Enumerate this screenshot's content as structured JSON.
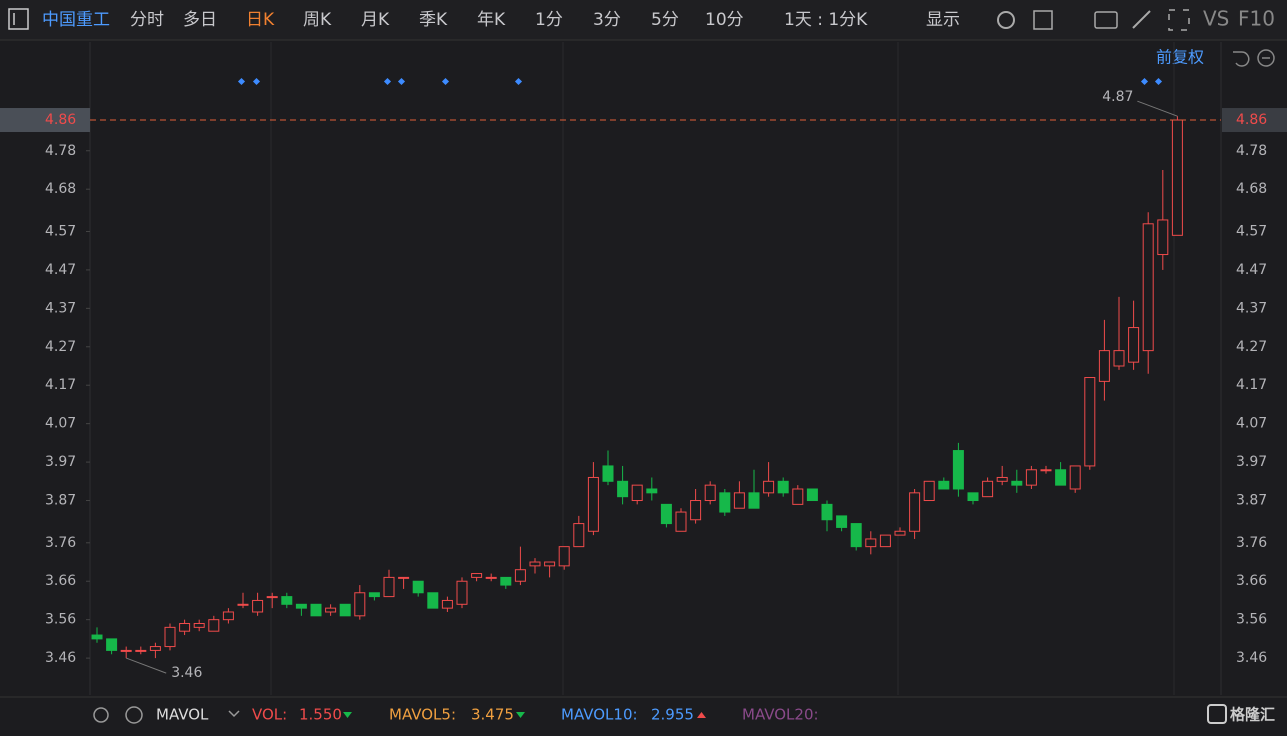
{
  "toolbar": {
    "stock": "中国重工",
    "tabs": [
      "分时",
      "多日",
      "日K",
      "周K",
      "月K",
      "季K",
      "年K",
      "1分",
      "3分",
      "5分",
      "10分"
    ],
    "active_tab": "日K",
    "period": "1天 : 1分K",
    "display": "显示",
    "vs": "VS",
    "f10": "F10",
    "adjust": "前复权"
  },
  "chart_data": {
    "type": "candlestick",
    "open": [
      3.52,
      3.51,
      3.48,
      3.48,
      3.48,
      3.49,
      3.53,
      3.54,
      3.53,
      3.56,
      3.6,
      3.58,
      3.62,
      3.62,
      3.6,
      3.6,
      3.58,
      3.6,
      3.57,
      3.63,
      3.62,
      3.67,
      3.66,
      3.63,
      3.59,
      3.6,
      3.67,
      3.67,
      3.67,
      3.66,
      3.7,
      3.7,
      3.7,
      3.75,
      3.79,
      3.96,
      3.92,
      3.87,
      3.9,
      3.86,
      3.79,
      3.82,
      3.87,
      3.89,
      3.85,
      3.89,
      3.89,
      3.92,
      3.86,
      3.9,
      3.86,
      3.83,
      3.81,
      3.75,
      3.75,
      3.78,
      3.79,
      3.87,
      3.92,
      4.0,
      3.89,
      3.88,
      3.92,
      3.92,
      3.91,
      3.95,
      3.95,
      3.9,
      3.96,
      4.18,
      4.22,
      4.23,
      4.26,
      4.51,
      4.56
    ],
    "high": [
      3.54,
      3.51,
      3.49,
      3.49,
      3.5,
      3.55,
      3.56,
      3.56,
      3.57,
      3.59,
      3.63,
      3.63,
      3.63,
      3.63,
      3.6,
      3.6,
      3.6,
      3.6,
      3.65,
      3.63,
      3.69,
      3.67,
      3.66,
      3.63,
      3.62,
      3.67,
      3.68,
      3.68,
      3.67,
      3.75,
      3.72,
      3.71,
      3.75,
      3.83,
      3.97,
      4.0,
      3.96,
      3.91,
      3.93,
      3.86,
      3.85,
      3.9,
      3.92,
      3.9,
      3.92,
      3.95,
      3.97,
      3.93,
      3.91,
      3.9,
      3.87,
      3.83,
      3.81,
      3.79,
      3.78,
      3.8,
      3.9,
      3.92,
      3.93,
      4.02,
      3.89,
      3.93,
      3.96,
      3.95,
      3.96,
      3.96,
      3.97,
      3.96,
      4.19,
      4.34,
      4.4,
      4.39,
      4.62,
      4.73,
      4.87
    ],
    "low": [
      3.5,
      3.47,
      3.46,
      3.47,
      3.46,
      3.48,
      3.52,
      3.53,
      3.53,
      3.55,
      3.59,
      3.57,
      3.59,
      3.59,
      3.57,
      3.57,
      3.57,
      3.57,
      3.56,
      3.61,
      3.62,
      3.64,
      3.62,
      3.59,
      3.58,
      3.59,
      3.66,
      3.66,
      3.64,
      3.65,
      3.68,
      3.67,
      3.69,
      3.75,
      3.78,
      3.91,
      3.86,
      3.86,
      3.87,
      3.8,
      3.79,
      3.81,
      3.86,
      3.83,
      3.85,
      3.85,
      3.88,
      3.88,
      3.86,
      3.87,
      3.79,
      3.79,
      3.74,
      3.73,
      3.75,
      3.78,
      3.77,
      3.87,
      3.9,
      3.88,
      3.86,
      3.88,
      3.91,
      3.89,
      3.9,
      3.94,
      3.91,
      3.89,
      3.95,
      4.13,
      4.21,
      4.21,
      4.2,
      4.47,
      4.56
    ],
    "close": [
      3.51,
      3.48,
      3.48,
      3.48,
      3.49,
      3.54,
      3.55,
      3.55,
      3.56,
      3.58,
      3.6,
      3.61,
      3.62,
      3.6,
      3.59,
      3.57,
      3.59,
      3.57,
      3.63,
      3.62,
      3.67,
      3.67,
      3.63,
      3.59,
      3.61,
      3.66,
      3.68,
      3.67,
      3.65,
      3.69,
      3.71,
      3.71,
      3.75,
      3.81,
      3.93,
      3.92,
      3.88,
      3.91,
      3.89,
      3.81,
      3.84,
      3.87,
      3.91,
      3.84,
      3.89,
      3.85,
      3.92,
      3.89,
      3.9,
      3.87,
      3.82,
      3.8,
      3.75,
      3.77,
      3.78,
      3.79,
      3.89,
      3.92,
      3.9,
      3.9,
      3.87,
      3.92,
      3.93,
      3.91,
      3.95,
      3.95,
      3.91,
      3.96,
      4.19,
      4.26,
      4.26,
      4.32,
      4.59,
      4.6,
      4.86
    ],
    "up_color": "#f04b4b",
    "down_color": "#16b84a",
    "ylim": [
      3.364,
      5.063
    ],
    "yticks": [
      3.46,
      3.56,
      3.66,
      3.76,
      3.87,
      3.97,
      4.07,
      4.17,
      4.27,
      4.37,
      4.47,
      4.57,
      4.68,
      4.78
    ],
    "last_price": 4.86,
    "max_label": 4.87,
    "min_label": 3.46
  },
  "indicator": {
    "name": "MAVOL",
    "vol_label": "VOL:",
    "vol": "1.550",
    "ma5_label": "MAVOL5:",
    "ma5": "3.475",
    "ma10_label": "MAVOL10:",
    "ma10": "2.955",
    "ma20_label": "MAVOL20:"
  },
  "watermark": "格隆汇"
}
